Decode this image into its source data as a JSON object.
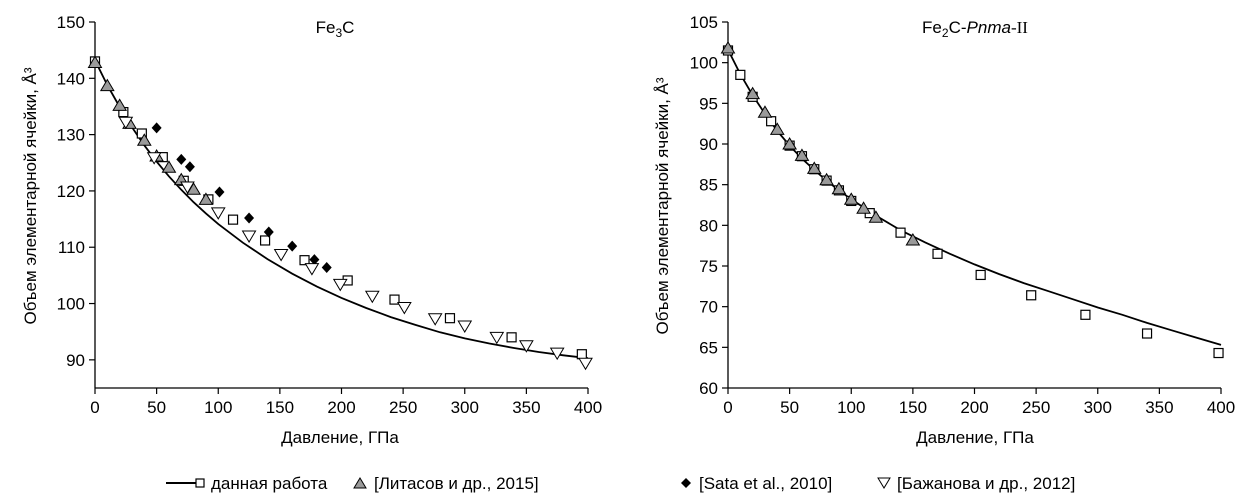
{
  "chart_data": [
    {
      "type": "scatter",
      "title_main": "Fe",
      "title_sub": "3",
      "title_tail": "C",
      "xlabel": "Давление, ГПа",
      "ylabel": "Объем элементарной ячейки, Å³",
      "xlim": [
        0,
        400
      ],
      "ylim": [
        85,
        150
      ],
      "xticks": [
        0,
        50,
        100,
        150,
        200,
        250,
        300,
        350,
        400
      ],
      "yticks": [
        90,
        100,
        110,
        120,
        130,
        140,
        150
      ],
      "grid": false,
      "series": [
        {
          "name": "данная работа",
          "marker": "square-line",
          "curve": [
            [
              0,
              143.2
            ],
            [
              10,
              138.8
            ],
            [
              20,
              134.9
            ],
            [
              30,
              131.3
            ],
            [
              40,
              128.1
            ],
            [
              50,
              125.2
            ],
            [
              60,
              122.6
            ],
            [
              70,
              120.2
            ],
            [
              80,
              118.0
            ],
            [
              90,
              116.0
            ],
            [
              100,
              114.1
            ],
            [
              120,
              110.8
            ],
            [
              140,
              107.9
            ],
            [
              160,
              105.3
            ],
            [
              180,
              103.0
            ],
            [
              200,
              101.0
            ],
            [
              220,
              99.2
            ],
            [
              240,
              97.6
            ],
            [
              260,
              96.2
            ],
            [
              280,
              94.9
            ],
            [
              300,
              93.8
            ],
            [
              320,
              92.9
            ],
            [
              340,
              92.1
            ],
            [
              360,
              91.4
            ],
            [
              380,
              90.8
            ],
            [
              400,
              90.3
            ]
          ],
          "points": [
            [
              0,
              143.0
            ],
            [
              23,
              134.0
            ],
            [
              38,
              130.2
            ],
            [
              55,
              126.0
            ],
            [
              72,
              121.8
            ],
            [
              92,
              118.5
            ],
            [
              112,
              114.9
            ],
            [
              138,
              111.2
            ],
            [
              170,
              107.7
            ],
            [
              205,
              104.1
            ],
            [
              243,
              100.7
            ],
            [
              288,
              97.4
            ],
            [
              338,
              94.0
            ],
            [
              395,
              91.0
            ]
          ]
        },
        {
          "name": "[Литасов и др., 2015]",
          "marker": "triangle-filled",
          "points": [
            [
              0,
              142.8
            ],
            [
              10,
              138.7
            ],
            [
              20,
              135.2
            ],
            [
              28,
              132.0
            ],
            [
              40,
              129.0
            ],
            [
              50,
              126.2
            ],
            [
              60,
              124.2
            ],
            [
              70,
              122.0
            ],
            [
              80,
              120.3
            ],
            [
              90,
              118.5
            ]
          ]
        },
        {
          "name": "[Sata et al., 2010]",
          "marker": "diamond",
          "points": [
            [
              50,
              131.2
            ],
            [
              70,
              125.6
            ],
            [
              77,
              124.3
            ],
            [
              101,
              119.8
            ],
            [
              125,
              115.2
            ],
            [
              141,
              112.7
            ],
            [
              160,
              110.2
            ],
            [
              178,
              107.8
            ],
            [
              188,
              106.4
            ]
          ]
        },
        {
          "name": "[Бажанова и др., 2012]",
          "marker": "triangle-down-open",
          "points": [
            [
              25,
              132.2
            ],
            [
              48,
              125.9
            ],
            [
              75,
              120.7
            ],
            [
              100,
              116.1
            ],
            [
              125,
              112.0
            ],
            [
              151,
              108.7
            ],
            [
              176,
              106.2
            ],
            [
              199,
              103.4
            ],
            [
              225,
              101.3
            ],
            [
              251,
              99.3
            ],
            [
              276,
              97.3
            ],
            [
              300,
              96.0
            ],
            [
              326,
              94.0
            ],
            [
              350,
              92.5
            ],
            [
              375,
              91.2
            ],
            [
              398,
              89.4
            ]
          ]
        }
      ]
    },
    {
      "type": "scatter",
      "title_main": "Fe",
      "title_sub": "2",
      "title_tail": "C-",
      "title_italic": "Pnma",
      "title_end": "-II",
      "xlabel": "Давление, ГПа",
      "ylabel": "Объем элементарной ячейки, Å³",
      "xlim": [
        0,
        400
      ],
      "ylim": [
        60,
        105
      ],
      "xticks": [
        0,
        50,
        100,
        150,
        200,
        250,
        300,
        350,
        400
      ],
      "yticks": [
        60,
        65,
        70,
        75,
        80,
        85,
        90,
        95,
        100,
        105
      ],
      "grid": false,
      "series": [
        {
          "name": "данная работа",
          "marker": "square-line",
          "curve": [
            [
              0,
              101.6
            ],
            [
              10,
              98.6
            ],
            [
              20,
              96.0
            ],
            [
              30,
              93.7
            ],
            [
              40,
              91.6
            ],
            [
              50,
              89.8
            ],
            [
              60,
              88.2
            ],
            [
              70,
              86.8
            ],
            [
              80,
              85.5
            ],
            [
              90,
              84.3
            ],
            [
              100,
              83.2
            ],
            [
              120,
              81.2
            ],
            [
              140,
              79.4
            ],
            [
              160,
              77.9
            ],
            [
              180,
              76.5
            ],
            [
              200,
              75.2
            ],
            [
              220,
              74.0
            ],
            [
              240,
              72.9
            ],
            [
              260,
              71.9
            ],
            [
              280,
              70.9
            ],
            [
              300,
              69.9
            ],
            [
              320,
              69.0
            ],
            [
              340,
              68.0
            ],
            [
              360,
              67.1
            ],
            [
              380,
              66.2
            ],
            [
              400,
              65.3
            ]
          ],
          "points": [
            [
              0,
              101.5
            ],
            [
              10,
              98.5
            ],
            [
              20,
              95.8
            ],
            [
              35,
              92.8
            ],
            [
              50,
              89.8
            ],
            [
              60,
              88.5
            ],
            [
              70,
              86.9
            ],
            [
              80,
              85.5
            ],
            [
              90,
              84.3
            ],
            [
              100,
              83.0
            ],
            [
              115,
              81.5
            ],
            [
              140,
              79.1
            ],
            [
              170,
              76.5
            ],
            [
              205,
              73.9
            ],
            [
              246,
              71.4
            ],
            [
              290,
              69.0
            ],
            [
              340,
              66.7
            ],
            [
              398,
              64.3
            ]
          ]
        },
        {
          "name": "[Литасов и др., 2015]",
          "marker": "triangle-filled",
          "points": [
            [
              0,
              101.8
            ],
            [
              20,
              96.2
            ],
            [
              30,
              93.9
            ],
            [
              40,
              91.8
            ],
            [
              50,
              90.0
            ],
            [
              60,
              88.6
            ],
            [
              70,
              87.0
            ],
            [
              80,
              85.6
            ],
            [
              90,
              84.5
            ],
            [
              100,
              83.2
            ],
            [
              110,
              82.1
            ],
            [
              120,
              81.0
            ],
            [
              150,
              78.2
            ]
          ]
        }
      ]
    }
  ],
  "legend": [
    {
      "label": "данная работа",
      "marker": "square-line"
    },
    {
      "label": "[Литасов и др., 2015]",
      "marker": "triangle-filled"
    },
    {
      "label": "[Sata et al., 2010]",
      "marker": "diamond"
    },
    {
      "label": "[Бажанова и др., 2012]",
      "marker": "triangle-down-open"
    }
  ]
}
